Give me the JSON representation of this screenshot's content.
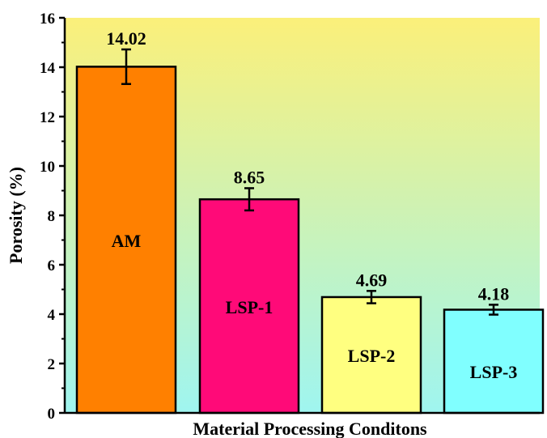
{
  "chart_data": {
    "type": "bar",
    "xlabel": "Material Processing Conditons",
    "ylabel": "Porosity (%)",
    "ylim": [
      0,
      16
    ],
    "yticks": [
      0,
      2,
      4,
      6,
      8,
      10,
      12,
      14,
      16
    ],
    "categories": [
      "AM",
      "LSP-1",
      "LSP-2",
      "LSP-3"
    ],
    "values": [
      14.02,
      8.65,
      4.69,
      4.18
    ],
    "value_labels": [
      "14.02",
      "8.65",
      "4.69",
      "4.18"
    ],
    "errors": [
      0.7,
      0.45,
      0.25,
      0.2
    ],
    "bar_colors": [
      "#ff8000",
      "#ff0a78",
      "#ffff80",
      "#80ffff"
    ],
    "background_gradient": [
      "#fbf07a",
      "#9ff5f0"
    ],
    "grid": false,
    "legend": "none"
  }
}
